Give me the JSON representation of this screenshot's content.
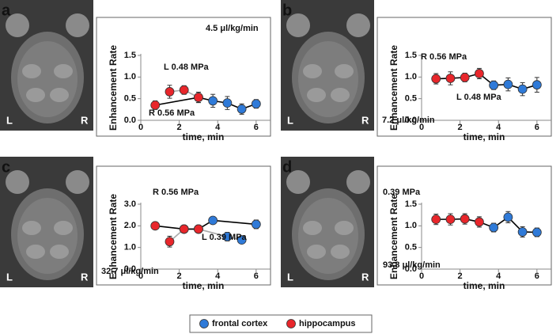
{
  "chart_data": [
    {
      "type": "line",
      "panel_label": "a",
      "image_labels": [
        "L",
        "R"
      ],
      "y_label": "Enhancement Rate",
      "x_label": "time, min",
      "annotations": [
        "4.5 μl/kg/min",
        "L 0.48 MPa",
        "R 0.56 MPa"
      ],
      "xlim": [
        0,
        6.5
      ],
      "xticks": [
        0,
        2,
        4,
        6
      ],
      "ylim": [
        0,
        1.5
      ],
      "yticks": [
        {
          "value": 0,
          "label": "0.0"
        },
        0.5,
        {
          "value": 1,
          "label": "1.0"
        },
        1.5
      ],
      "series": [
        {
          "color": "#000000",
          "x": [
            0.75,
            3.0,
            3.75,
            4.5,
            5.25,
            6.0
          ],
          "values": [
            0.35,
            0.53,
            0.45,
            0.4,
            0.26,
            0.38
          ],
          "errors": [
            0.1,
            0.12,
            0.15,
            0.15,
            0.12,
            0.1
          ],
          "point_colors": [
            "#e8262b",
            "#e8262b",
            "#2f7ad8",
            "#2f7ad8",
            "#2f7ad8",
            "#2f7ad8"
          ]
        },
        {
          "color": "#aaaaaa",
          "x": [
            1.5,
            2.25,
            3.0
          ],
          "values": [
            0.66,
            0.7,
            0.53
          ],
          "errors": [
            0.15,
            0.1,
            0.12
          ],
          "point_colors": [
            "#e8262b",
            "#e8262b",
            "#e8262b"
          ]
        }
      ]
    },
    {
      "type": "line",
      "panel_label": "b",
      "image_labels": [
        "L",
        "R"
      ],
      "y_label": "Enhancement Rate",
      "x_label": "time, min",
      "annotations": [
        "R 0.56 MPa",
        "L 0.48 MPa",
        "7.2 μl/kg/min"
      ],
      "xlim": [
        0,
        6.5
      ],
      "xticks": [
        0,
        2,
        4,
        6
      ],
      "ylim": [
        0,
        1.5
      ],
      "yticks": [
        {
          "value": 0,
          "label": "0.0"
        },
        0.5,
        {
          "value": 1,
          "label": "1.0"
        },
        1.5
      ],
      "series": [
        {
          "color": "#000000",
          "x": [
            0.75,
            1.5,
            2.25,
            3.0,
            3.75,
            4.5,
            5.25,
            6.0
          ],
          "values": [
            0.96,
            0.97,
            0.99,
            1.08,
            0.81,
            0.83,
            0.72,
            0.82
          ],
          "errors": [
            0.12,
            0.15,
            0.1,
            0.12,
            0.1,
            0.15,
            0.15,
            0.17
          ],
          "point_colors": [
            "#e8262b",
            "#e8262b",
            "#e8262b",
            "#e8262b",
            "#2f7ad8",
            "#2f7ad8",
            "#2f7ad8",
            "#2f7ad8"
          ]
        }
      ]
    },
    {
      "type": "line",
      "panel_label": "c",
      "image_labels": [
        "L",
        "R"
      ],
      "y_label": "Enhancement Rate",
      "x_label": "time, min",
      "annotations": [
        "R 0.56 MPa",
        "L 0.39 MPa",
        "32.7 μl/kg/min"
      ],
      "xlim": [
        0,
        6.5
      ],
      "xticks": [
        0,
        2,
        4,
        6
      ],
      "ylim": [
        0,
        3
      ],
      "yticks": [
        {
          "value": 0,
          "label": "0.0"
        },
        {
          "value": 1,
          "label": "1.0"
        },
        {
          "value": 2,
          "label": "2.0"
        },
        {
          "value": 3,
          "label": "3.0"
        }
      ],
      "series": [
        {
          "color": "#aaaaaa",
          "x": [
            1.5,
            2.25,
            3.0,
            4.5,
            5.25
          ],
          "values": [
            1.27,
            1.85,
            1.85,
            1.5,
            1.35
          ],
          "errors": [
            0.25,
            0.12,
            0.1,
            0.2,
            0.15
          ],
          "point_colors": [
            "#e8262b",
            "#e8262b",
            "#e8262b",
            "#2f7ad8",
            "#2f7ad8"
          ]
        },
        {
          "color": "#000000",
          "x": [
            0.75,
            2.25,
            3.0,
            3.75,
            6.0
          ],
          "values": [
            2.0,
            1.85,
            1.85,
            2.25,
            2.07
          ],
          "errors": [
            0.15,
            0.12,
            0.1,
            0.15,
            0.2
          ],
          "point_colors": [
            "#e8262b",
            "#e8262b",
            "#e8262b",
            "#2f7ad8",
            "#2f7ad8"
          ]
        }
      ]
    },
    {
      "type": "line",
      "panel_label": "d",
      "image_labels": [
        "L",
        "R"
      ],
      "y_label": "Enhancement Rate",
      "x_label": "time, min",
      "annotations": [
        "0.39 MPa",
        "93.8 μl/kg/min"
      ],
      "xlim": [
        0,
        6.5
      ],
      "xticks": [
        0,
        2,
        4,
        6
      ],
      "ylim": [
        0,
        1.5
      ],
      "yticks": [
        {
          "value": 0,
          "label": "0.0"
        },
        0.5,
        {
          "value": 1,
          "label": "1.0"
        },
        1.5
      ],
      "series": [
        {
          "color": "#000000",
          "x": [
            0.75,
            1.5,
            2.25,
            3.0,
            3.75,
            4.5,
            5.25,
            6.0
          ],
          "values": [
            1.15,
            1.15,
            1.16,
            1.09,
            0.96,
            1.2,
            0.86,
            0.85
          ],
          "errors": [
            0.12,
            0.13,
            0.12,
            0.12,
            0.1,
            0.13,
            0.12,
            0.1
          ],
          "point_colors": [
            "#e8262b",
            "#e8262b",
            "#e8262b",
            "#e8262b",
            "#2f7ad8",
            "#2f7ad8",
            "#2f7ad8",
            "#2f7ad8"
          ]
        }
      ]
    }
  ],
  "legend": [
    {
      "name": "frontal cortex",
      "color": "#2f7ad8"
    },
    {
      "name": "hippocampus",
      "color": "#e8262b"
    }
  ]
}
